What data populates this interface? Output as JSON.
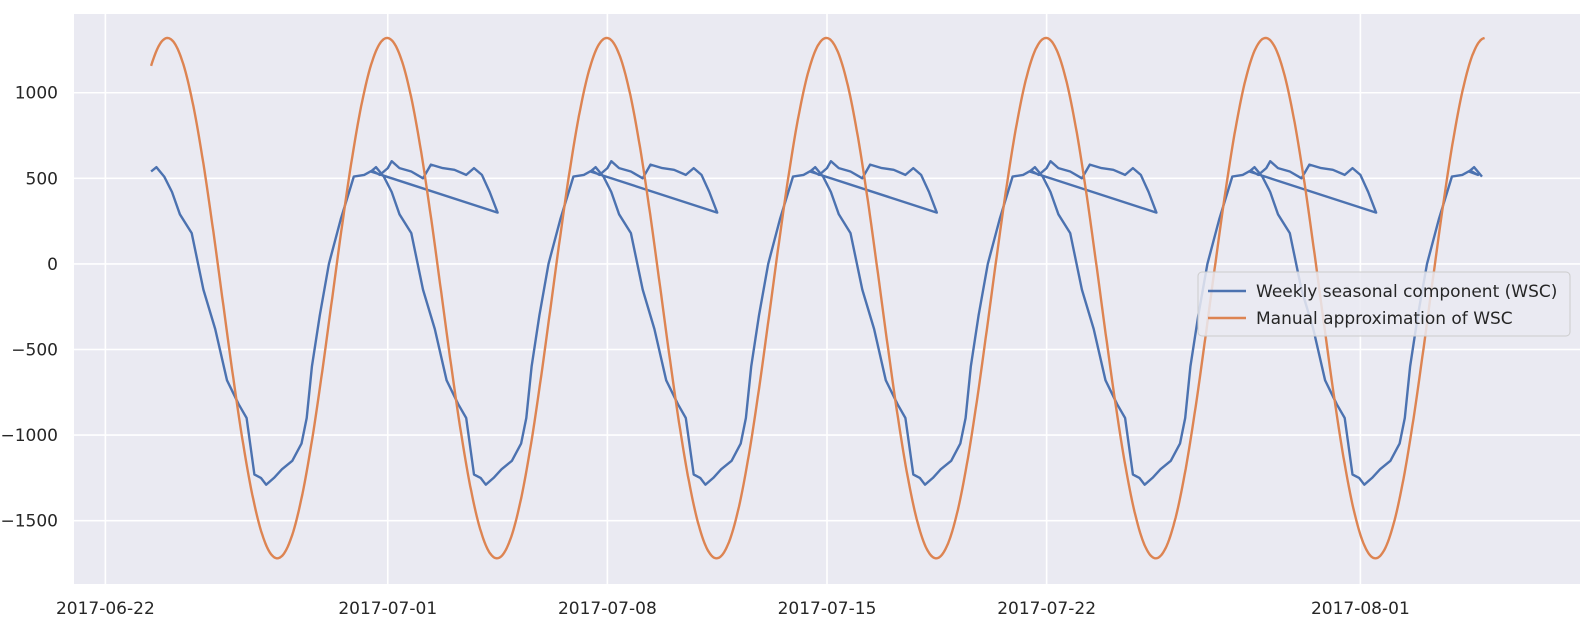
{
  "chart_data": {
    "type": "line",
    "title": "",
    "xlabel": "",
    "ylabel": "",
    "x_axis_type": "date",
    "x_range": [
      "2017-06-21T00:00",
      "2017-08-08T00:00"
    ],
    "y_range": [
      -1870,
      1460
    ],
    "x_ticks": [
      "2017-06-22",
      "2017-07-01",
      "2017-07-08",
      "2017-07-15",
      "2017-07-22",
      "2017-08-01"
    ],
    "y_ticks": [
      1000,
      500,
      0,
      -500,
      -1000,
      -1500
    ],
    "y_tick_labels": [
      "1000",
      "500",
      "0",
      "−500",
      "−1000",
      "−1500"
    ],
    "grid": true,
    "legend_position": "center-right",
    "background_color": "#eaeaf2",
    "grid_color": "#ffffff",
    "series": [
      {
        "name": "Weekly seasonal component (WSC)",
        "color": "#4c72b0",
        "period_days": 7,
        "start": "2017-06-23T11:00",
        "end": "2017-08-04T23:00",
        "weekly_profile": [
          {
            "t": "2017-06-23T11:00",
            "y": 540
          },
          {
            "t": "2017-06-23T15:00",
            "y": 565
          },
          {
            "t": "2017-06-23T21:00",
            "y": 510
          },
          {
            "t": "2017-06-24T03:00",
            "y": 420
          },
          {
            "t": "2017-06-24T09:00",
            "y": 290
          },
          {
            "t": "2017-06-24T18:00",
            "y": 180
          },
          {
            "t": "2017-06-25T03:00",
            "y": -150
          },
          {
            "t": "2017-06-25T12:00",
            "y": -380
          },
          {
            "t": "2017-06-25T21:00",
            "y": -680
          },
          {
            "t": "2017-06-26T06:00",
            "y": -820
          },
          {
            "t": "2017-06-26T12:00",
            "y": -900
          },
          {
            "t": "2017-06-26T18:00",
            "y": -1230
          },
          {
            "t": "2017-06-26T23:00",
            "y": -1250
          },
          {
            "t": "2017-06-27T03:00",
            "y": -1290
          },
          {
            "t": "2017-06-27T09:00",
            "y": -1250
          },
          {
            "t": "2017-06-27T15:00",
            "y": -1200
          },
          {
            "t": "2017-06-27T23:00",
            "y": -1150
          },
          {
            "t": "2017-06-28T06:00",
            "y": -1050
          },
          {
            "t": "2017-06-28T10:00",
            "y": -900
          },
          {
            "t": "2017-06-28T14:00",
            "y": -600
          },
          {
            "t": "2017-06-28T20:00",
            "y": -300
          },
          {
            "t": "2017-06-29T03:00",
            "y": 0
          },
          {
            "t": "2017-06-29T12:00",
            "y": 260
          },
          {
            "t": "2017-06-29T22:00",
            "y": 510
          },
          {
            "t": "2017-06-30T06:00",
            "y": 520
          },
          {
            "t": "2017-06-30T12:00",
            "y": 545
          },
          {
            "t": "2017-06-30T18:00",
            "y": 520
          },
          {
            "t": "2017-07-01T00:00",
            "y": 560
          },
          {
            "t": "2017-07-01T03:00",
            "y": 600
          },
          {
            "t": "2017-07-01T09:00",
            "y": 560
          },
          {
            "t": "2017-07-01T18:00",
            "y": 540
          },
          {
            "t": "2017-07-02T03:00",
            "y": 500
          },
          {
            "t": "2017-07-02T09:00",
            "y": 580
          },
          {
            "t": "2017-07-02T18:00",
            "y": 560
          },
          {
            "t": "2017-07-03T03:00",
            "y": 550
          },
          {
            "t": "2017-07-03T12:00",
            "y": 520
          },
          {
            "t": "2017-07-03T18:00",
            "y": 560
          },
          {
            "t": "2017-07-04T00:00",
            "y": 520
          },
          {
            "t": "2017-07-04T06:00",
            "y": 420
          },
          {
            "t": "2017-07-04T12:00",
            "y": 300
          }
        ]
      },
      {
        "name": "Manual approximation of WSC",
        "color": "#dd8452",
        "start": "2017-06-23T11:00",
        "end": "2017-08-04T23:00",
        "curve": {
          "amplitude": 1520,
          "offset": -200,
          "period_days": 7,
          "peak": "2017-06-30T23:30"
        }
      }
    ]
  }
}
